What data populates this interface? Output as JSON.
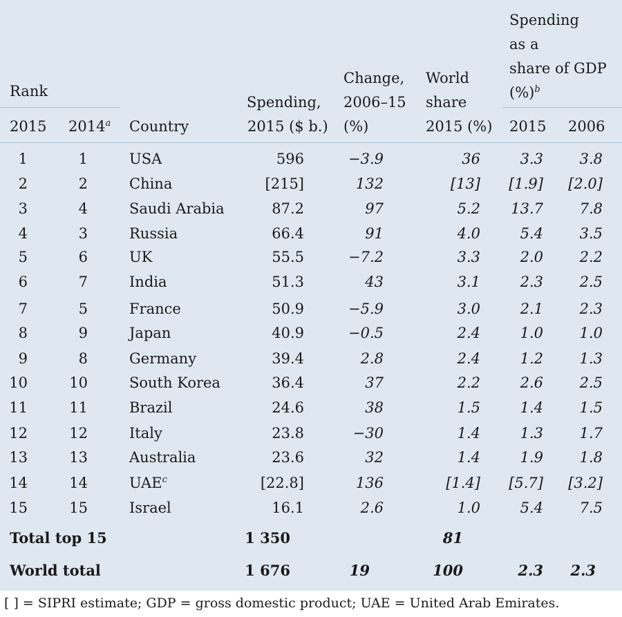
{
  "header": {
    "rank": "Rank",
    "rank_2015": "2015",
    "rank_2014": "2014",
    "rank_2014_note": "a",
    "country": "Country",
    "spending": [
      "Spending,",
      "2015 ($ b.)"
    ],
    "change": [
      "Change,",
      "2006–15",
      "(%)"
    ],
    "world_share": [
      "World",
      "share",
      "2015 (%)"
    ],
    "gdp_share": [
      "Spending",
      "as a",
      "share of GDP",
      "(%)"
    ],
    "gdp_share_note": "b",
    "gdp_2015": "2015",
    "gdp_2006": "2006"
  },
  "rows": [
    {
      "r15": "1",
      "r14": "1",
      "country": "USA",
      "note": "",
      "spend": "596",
      "change": "−3.9",
      "share": "36",
      "g15": "3.3",
      "g06": "3.8"
    },
    {
      "r15": "2",
      "r14": "2",
      "country": "China",
      "note": "",
      "spend": "[215]",
      "change": "132",
      "share": "[13]",
      "g15": "[1.9]",
      "g06": "[2.0]"
    },
    {
      "r15": "3",
      "r14": "4",
      "country": "Saudi Arabia",
      "note": "",
      "spend": "87.2",
      "change": "97",
      "share": "5.2",
      "g15": "13.7",
      "g06": "7.8"
    },
    {
      "r15": "4",
      "r14": "3",
      "country": "Russia",
      "note": "",
      "spend": "66.4",
      "change": "91",
      "share": "4.0",
      "g15": "5.4",
      "g06": "3.5"
    },
    {
      "r15": "5",
      "r14": "6",
      "country": "UK",
      "note": "",
      "spend": "55.5",
      "change": "−7.2",
      "share": "3.3",
      "g15": "2.0",
      "g06": "2.2"
    },
    {
      "r15": "6",
      "r14": "7",
      "country": "India",
      "note": "",
      "spend": "51.3",
      "change": "43",
      "share": "3.1",
      "g15": "2.3",
      "g06": "2.5"
    },
    {
      "r15": "7",
      "r14": "5",
      "country": "France",
      "note": "",
      "spend": "50.9",
      "change": "−5.9",
      "share": "3.0",
      "g15": "2.1",
      "g06": "2.3"
    },
    {
      "r15": "8",
      "r14": "9",
      "country": "Japan",
      "note": "",
      "spend": "40.9",
      "change": "−0.5",
      "share": "2.4",
      "g15": "1.0",
      "g06": "1.0"
    },
    {
      "r15": "9",
      "r14": "8",
      "country": "Germany",
      "note": "",
      "spend": "39.4",
      "change": "2.8",
      "share": "2.4",
      "g15": "1.2",
      "g06": "1.3"
    },
    {
      "r15": "10",
      "r14": "10",
      "country": "South Korea",
      "note": "",
      "spend": "36.4",
      "change": "37",
      "share": "2.2",
      "g15": "2.6",
      "g06": "2.5"
    },
    {
      "r15": "11",
      "r14": "11",
      "country": "Brazil",
      "note": "",
      "spend": "24.6",
      "change": "38",
      "share": "1.5",
      "g15": "1.4",
      "g06": "1.5"
    },
    {
      "r15": "12",
      "r14": "12",
      "country": "Italy",
      "note": "",
      "spend": "23.8",
      "change": "−30",
      "share": "1.4",
      "g15": "1.3",
      "g06": "1.7"
    },
    {
      "r15": "13",
      "r14": "13",
      "country": "Australia",
      "note": "",
      "spend": "23.6",
      "change": "32",
      "share": "1.4",
      "g15": "1.9",
      "g06": "1.8"
    },
    {
      "r15": "14",
      "r14": "14",
      "country": "UAE",
      "note": "c",
      "spend": "[22.8]",
      "change": "136",
      "share": "[1.4]",
      "g15": "[5.7]",
      "g06": "[3.2]"
    },
    {
      "r15": "15",
      "r14": "15",
      "country": "Israel",
      "note": "",
      "spend": "16.1",
      "change": "2.6",
      "share": "1.0",
      "g15": "5.4",
      "g06": "7.5"
    }
  ],
  "totals": [
    {
      "label": "Total top 15",
      "spend": "1 350",
      "change": "",
      "share": "81",
      "g15": "",
      "g06": ""
    },
    {
      "label": "World total",
      "spend": "1 676",
      "change": "19",
      "share": "100",
      "g15": "2.3",
      "g06": "2.3"
    }
  ],
  "footnote": "[ ] = SIPRI estimate; GDP = gross domestic product; UAE = United Arab Emirates."
}
